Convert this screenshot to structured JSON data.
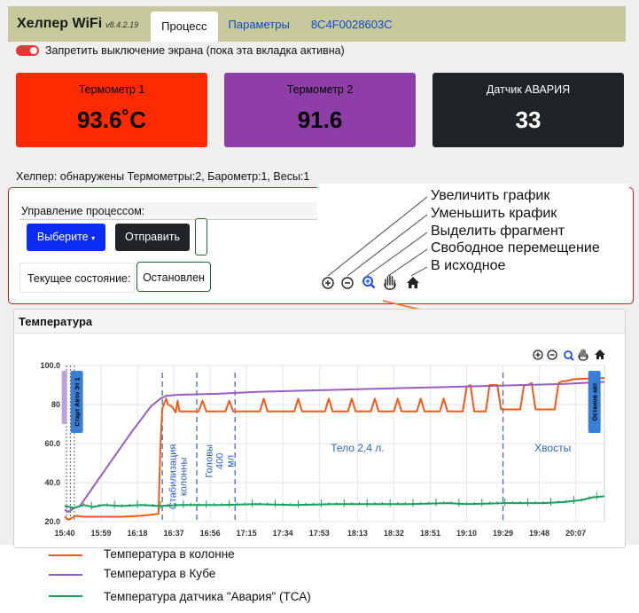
{
  "app": {
    "brand": "Хелпер WiFi",
    "version": "v8.4.2.19"
  },
  "tabs": [
    {
      "label": "Процесс"
    },
    {
      "label": "Параметры"
    },
    {
      "label": "8C4F0028603C"
    }
  ],
  "screen_lock": {
    "label": "Запретить выключение экрана (пока эта вкладка активна)",
    "on": true
  },
  "cards": [
    {
      "label": "Термометр 1",
      "value": "93.6˚C",
      "color": "#ff2a00"
    },
    {
      "label": "Термометр 2",
      "value": "91.6",
      "color": "#8e3fa7"
    },
    {
      "label": "Датчик АВАРИЯ",
      "value": "33",
      "color": "#1f2428"
    }
  ],
  "found_text": "Хелпер: обнаружены Термометры:2, Барометр:1, Весы:1",
  "process": {
    "title": "Управление процессом:",
    "select_label": "Выберите",
    "send_label": "Отправить",
    "state_label": "Текущее состояние:",
    "state_value": "Остановлен"
  },
  "zoom_legend": [
    {
      "icon": "zoom-in-icon",
      "text": "Увеличить график"
    },
    {
      "icon": "zoom-out-icon",
      "text": "Уменьшить крафик"
    },
    {
      "icon": "select-zoom-icon",
      "text": "Выделить фрагмент"
    },
    {
      "icon": "pan-hand-icon",
      "text": "Свободное перемещение"
    },
    {
      "icon": "home-icon",
      "text": "В исходное"
    }
  ],
  "temperature_panel": {
    "title": "Температура"
  },
  "chart_data": {
    "type": "line",
    "ylim": [
      20,
      100
    ],
    "yticks": [
      20.0,
      40.0,
      60.0,
      80.0,
      100.0
    ],
    "ytick_labels": [
      "20.0",
      "40.0",
      "60.0",
      "80",
      "100.0"
    ],
    "xtick_labels": [
      "15:40",
      "15:59",
      "16:18",
      "16:37",
      "16:56",
      "17:15",
      "17:34",
      "17:53",
      "18:13",
      "18:32",
      "18:51",
      "19:10",
      "19:29",
      "19:48",
      "20:07"
    ],
    "x_minutes": [
      0,
      19,
      38,
      57,
      76,
      95,
      114,
      133,
      153,
      172,
      191,
      210,
      229,
      248,
      267
    ],
    "xlim_minutes": [
      0,
      282
    ],
    "grid": true,
    "series": [
      {
        "name": "Температура в колонне",
        "color": "#ef5a18",
        "x": [
          0,
          2,
          6,
          10,
          20,
          30,
          40,
          49,
          50,
          51,
          53,
          54,
          56,
          58,
          59,
          60,
          62,
          64,
          70,
          72,
          74,
          76,
          78,
          84,
          86,
          88,
          90,
          92,
          102,
          104,
          106,
          108,
          110,
          120,
          122,
          124,
          126,
          128,
          136,
          138,
          140,
          142,
          144,
          148,
          150,
          152,
          154,
          156,
          160,
          162,
          164,
          166,
          168,
          172,
          174,
          176,
          178,
          180,
          184,
          186,
          188,
          190,
          192,
          196,
          198,
          200,
          202,
          204,
          208,
          210,
          212,
          214,
          216,
          220,
          222,
          224,
          226,
          228,
          238,
          240,
          242,
          244,
          246,
          256,
          258,
          260,
          262,
          264,
          266,
          280,
          282
        ],
        "y": [
          22.5,
          21.0,
          23.0,
          22.5,
          22.5,
          22.5,
          23.0,
          24.0,
          58.0,
          78.0,
          83.0,
          80.0,
          79.0,
          76.0,
          82.0,
          76.5,
          76.5,
          76.5,
          76.5,
          82.0,
          76.5,
          76.5,
          76.5,
          76.5,
          82.0,
          76.5,
          76.5,
          76.5,
          76.5,
          83.0,
          76.5,
          76.5,
          76.5,
          76.5,
          83.0,
          76.5,
          76.5,
          76.5,
          76.5,
          83.0,
          76.5,
          76.5,
          76.5,
          76.5,
          83.0,
          76.5,
          76.5,
          76.5,
          76.5,
          83.0,
          76.5,
          76.5,
          76.5,
          76.5,
          83.0,
          76.5,
          76.5,
          76.5,
          76.5,
          83.0,
          76.5,
          76.5,
          76.5,
          76.5,
          83.0,
          76.5,
          76.5,
          76.5,
          76.5,
          89.0,
          90.0,
          76.5,
          76.5,
          76.5,
          90.0,
          90.0,
          90.0,
          77.5,
          77.5,
          90.0,
          90.0,
          91.0,
          77.5,
          77.5,
          91.0,
          92.0,
          92.0,
          92.5,
          93.0,
          93.5,
          93.6
        ]
      },
      {
        "name": "Температура в Кубе",
        "color": "#9a5cc0",
        "x": [
          0,
          2,
          5,
          8,
          15,
          25,
          35,
          45,
          50,
          53,
          60,
          80,
          100,
          120,
          140,
          160,
          180,
          200,
          220,
          240,
          260,
          282
        ],
        "y": [
          26.0,
          25.0,
          27.0,
          28.0,
          38.0,
          52.0,
          66.0,
          79.0,
          83.0,
          84.5,
          85.0,
          85.5,
          86.5,
          87.0,
          87.5,
          88.0,
          88.5,
          89.0,
          89.5,
          90.0,
          90.5,
          91.6
        ]
      },
      {
        "name": "Температура датчика \"Авария\" (ТСА)",
        "color": "#13a05a",
        "x": [
          0,
          5,
          10,
          15,
          20,
          30,
          40,
          50,
          60,
          80,
          100,
          120,
          140,
          160,
          180,
          200,
          210,
          230,
          250,
          260,
          270,
          276,
          282
        ],
        "y": [
          28.0,
          27.0,
          28.5,
          27.5,
          28.5,
          28.0,
          28.5,
          28.0,
          28.5,
          28.5,
          29.0,
          28.5,
          29.0,
          29.0,
          29.0,
          29.5,
          29.0,
          29.5,
          29.5,
          30.0,
          31.0,
          32.5,
          33.0
        ]
      }
    ],
    "vlines_minutes": [
      51,
      69,
      89,
      229
    ],
    "annotations": [
      {
        "text": "Стабилизация колонны",
        "x": 58,
        "y": 43,
        "vertical": true
      },
      {
        "text": "Головы 400 мл",
        "x": 77,
        "y": 51,
        "vertical": true
      },
      {
        "text": "Тело 2,4 л.",
        "x": 153,
        "y": 56,
        "vertical": false
      },
      {
        "text": "Хвосты",
        "x": 255,
        "y": 56,
        "vertical": false
      }
    ],
    "markers": [
      {
        "text": "Старт  Авто  Эт 1",
        "color": "#3a7fd6",
        "x": 4
      },
      {
        "text": "Останов авт",
        "color": "#3a7fd6",
        "x": 280
      }
    ]
  }
}
